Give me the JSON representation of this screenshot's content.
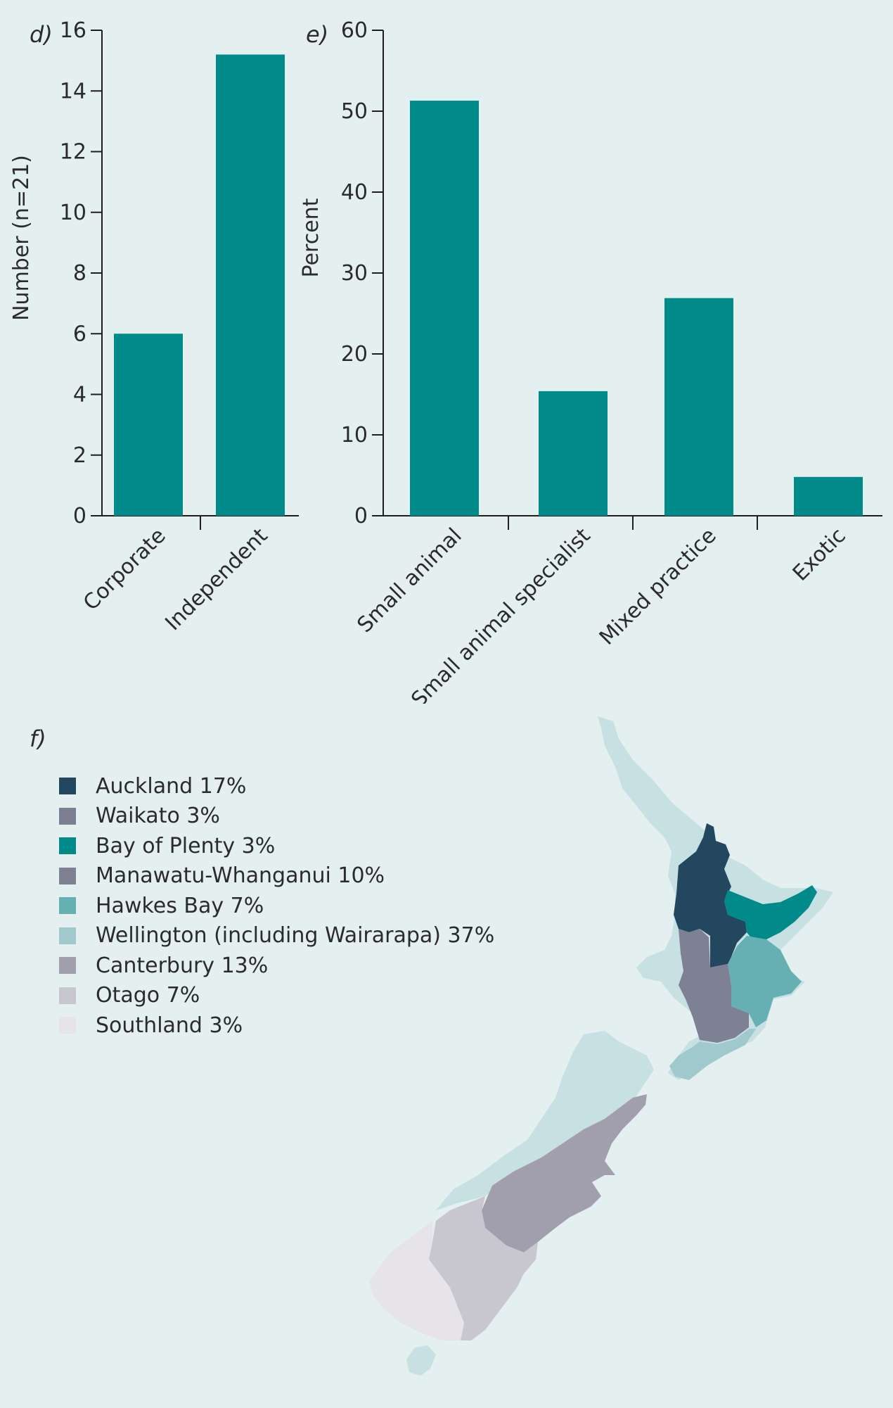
{
  "chart_data": [
    {
      "panel": "d)",
      "type": "bar",
      "categories": [
        "Corporate",
        "Independent"
      ],
      "values": [
        6,
        15.2
      ],
      "ylabel": "Number (n=21)",
      "ylim": [
        0,
        16
      ],
      "yticks": [
        0,
        2,
        4,
        6,
        8,
        10,
        12,
        14,
        16
      ],
      "grid": false,
      "color": "#008a8a"
    },
    {
      "panel": "e)",
      "type": "bar",
      "categories": [
        "Small animal",
        "Small animal specialist",
        "Mixed practice",
        "Exotic"
      ],
      "values": [
        51.3,
        15.4,
        26.9,
        4.8
      ],
      "ylabel": "Percent",
      "ylim": [
        0,
        60
      ],
      "yticks": [
        0,
        10,
        20,
        30,
        40,
        50,
        60
      ],
      "grid": false,
      "color": "#008a8a"
    }
  ],
  "map": {
    "panel": "f)",
    "legend": [
      {
        "label": "Auckland  17%",
        "color": "#23475f"
      },
      {
        "label": "Waikato 3%",
        "color": "#7c7f92"
      },
      {
        "label": "Bay of Plenty 3%",
        "color": "#008a8a"
      },
      {
        "label": "Manawatu-Whanganui 10%",
        "color": "#7e8194"
      },
      {
        "label": "Hawkes Bay 7%",
        "color": "#66b0b4"
      },
      {
        "label": "Wellington (including Wairarapa) 37%",
        "color": "#9fc9cc"
      },
      {
        "label": "Canterbury 13%",
        "color": "#a19fad"
      },
      {
        "label": "Otago 7%",
        "color": "#c8c7cf"
      },
      {
        "label": "Southland 3%",
        "color": "#e6e3e9"
      }
    ],
    "land_color": "#c7e0e2"
  }
}
